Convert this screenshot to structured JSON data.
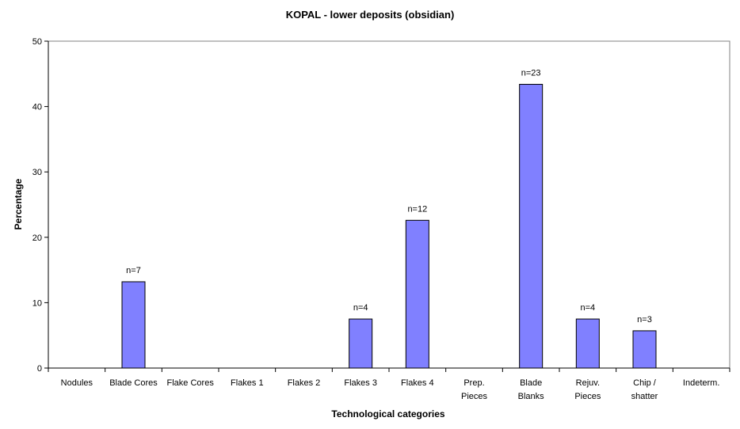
{
  "chart_data": {
    "type": "bar",
    "title": "KOPAL  - lower deposits (obsidian)",
    "xlabel": "Technological categories",
    "ylabel": "Percentage",
    "ylim": [
      0,
      50
    ],
    "yticks": [
      0,
      10,
      20,
      30,
      40,
      50
    ],
    "grid": false,
    "legend": "none",
    "colors": {
      "bar_fill": "#8080ff",
      "bar_stroke": "#000000",
      "axis": "#000000"
    },
    "categories": [
      [
        "Nodules"
      ],
      [
        "Blade Cores"
      ],
      [
        "Flake Cores"
      ],
      [
        "Flakes 1"
      ],
      [
        "Flakes 2"
      ],
      [
        "Flakes 3"
      ],
      [
        "Flakes 4"
      ],
      [
        "Prep.",
        "Pieces"
      ],
      [
        "Blade",
        "Blanks"
      ],
      [
        "Rejuv.",
        "Pieces"
      ],
      [
        "Chip /",
        "shatter"
      ],
      [
        "Indeterm."
      ]
    ],
    "values": [
      0,
      13.2,
      0,
      0,
      0,
      7.5,
      22.6,
      0,
      43.4,
      7.5,
      5.7,
      0
    ],
    "data_labels": [
      "",
      "n=7",
      "",
      "",
      "",
      "n=4",
      "n=12",
      "",
      "n=23",
      "n=4",
      "n=3",
      ""
    ]
  }
}
